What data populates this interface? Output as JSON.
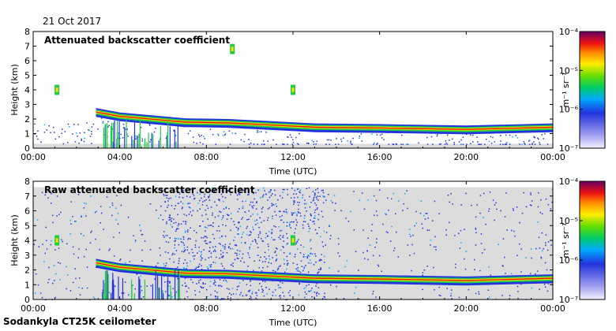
{
  "header": {
    "date": "21 Oct 2017"
  },
  "footer": {
    "instrument": "Sodankyla CT25K ceilometer"
  },
  "chart_data": [
    {
      "type": "heatmap",
      "title": "Attenuated backscatter coefficient",
      "xlabel": "Time (UTC)",
      "ylabel": "Height (km)",
      "xlim": [
        0,
        24
      ],
      "ylim": [
        0,
        8
      ],
      "x_ticks": [
        "00:00",
        "04:00",
        "08:00",
        "12:00",
        "16:00",
        "20:00",
        "00:00"
      ],
      "y_ticks": [
        "0",
        "1",
        "2",
        "3",
        "4",
        "5",
        "6",
        "7",
        "8"
      ],
      "colorbar": {
        "label": "m⁻¹ sr⁻¹",
        "min_label": "10⁻⁷",
        "max_label": "10⁻⁴",
        "ticks": [
          "10⁻⁷",
          "10⁻⁶",
          "10⁻⁵",
          "10⁻⁴"
        ]
      },
      "cloud_layer": [
        [
          2.9,
          2.5
        ],
        [
          4,
          2.2
        ],
        [
          5.5,
          2.0
        ],
        [
          7,
          1.8
        ],
        [
          9,
          1.75
        ],
        [
          11,
          1.6
        ],
        [
          13,
          1.45
        ],
        [
          16,
          1.4
        ],
        [
          20,
          1.3
        ],
        [
          24,
          1.45
        ]
      ],
      "elevated_layers": [
        {
          "time": 1.1,
          "height": 4.0
        },
        {
          "time": 9.2,
          "height": 6.8
        },
        {
          "time": 12.0,
          "height": 4.0
        }
      ],
      "noise": "low"
    },
    {
      "type": "heatmap",
      "title": "Raw attenuated backscatter coefficient",
      "xlabel": "Time (UTC)",
      "ylabel": "Height (km)",
      "xlim": [
        0,
        24
      ],
      "ylim": [
        0,
        8
      ],
      "x_ticks": [
        "00:00",
        "04:00",
        "08:00",
        "12:00",
        "16:00",
        "20:00",
        "00:00"
      ],
      "y_ticks": [
        "0",
        "1",
        "2",
        "3",
        "4",
        "5",
        "6",
        "7",
        "8"
      ],
      "colorbar": {
        "label": "m⁻¹ sr⁻¹",
        "min_label": "10⁻⁷",
        "max_label": "10⁻⁴",
        "ticks": [
          "10⁻⁷",
          "10⁻⁶",
          "10⁻⁵",
          "10⁻⁴"
        ]
      },
      "cloud_layer": [
        [
          2.9,
          2.5
        ],
        [
          4,
          2.2
        ],
        [
          5.5,
          2.0
        ],
        [
          7,
          1.8
        ],
        [
          9,
          1.75
        ],
        [
          11,
          1.6
        ],
        [
          13,
          1.45
        ],
        [
          16,
          1.4
        ],
        [
          20,
          1.3
        ],
        [
          24,
          1.45
        ]
      ],
      "elevated_layers": [
        {
          "time": 1.1,
          "height": 4.0
        },
        {
          "time": 12.0,
          "height": 4.0
        }
      ],
      "noise": "high"
    }
  ],
  "colors": {
    "background_gray": "#dcdcdc",
    "noise_blue": "#2233dd",
    "layer_green": "#22cc44",
    "layer_yellow": "#ffdd00",
    "layer_red": "#dd1111"
  }
}
